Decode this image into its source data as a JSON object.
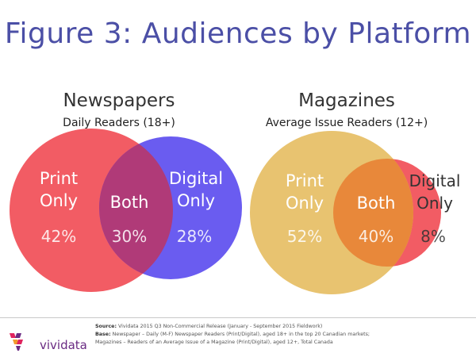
{
  "title": "Figure 3: Audiences by Platform",
  "chart_data": [
    {
      "type": "venn",
      "title": "Newspapers",
      "subtitle": "Daily Readers (18+)",
      "sets": [
        {
          "name": "Print",
          "region_label": [
            "Print",
            "Only"
          ],
          "value": 42,
          "value_label": "42%",
          "color": "#f25c64"
        },
        {
          "name": "Digital",
          "region_label": [
            "Digital",
            "Only"
          ],
          "value": 28,
          "value_label": "28%",
          "color": "#6a5cf0"
        }
      ],
      "overlap": {
        "label": "Both",
        "value": 30,
        "value_label": "30%",
        "color": "#b03a78"
      }
    },
    {
      "type": "venn",
      "title": "Magazines",
      "subtitle": "Average Issue Readers (12+)",
      "sets": [
        {
          "name": "Print",
          "region_label": [
            "Print",
            "Only"
          ],
          "value": 52,
          "value_label": "52%",
          "color": "#e8c370"
        },
        {
          "name": "Digital",
          "region_label": [
            "Digital",
            "Only"
          ],
          "value": 8,
          "value_label": "8%",
          "color": "#f25c64"
        }
      ],
      "overlap": {
        "label": "Both",
        "value": 40,
        "value_label": "40%",
        "color": "#e8883a"
      }
    }
  ],
  "footer": {
    "source_label": "Source:",
    "source_text": "Vividata 2015 Q3 Non-Commercial Release (January - September 2015 Fieldwork)",
    "base_label": "Base:",
    "base_text": "Newspaper – Daily (M-F) Newspaper Readers (Print/Digital), aged 18+ in the top 20 Canadian markets;",
    "base_text2": "Magazines – Readers of an Average Issue of a Magazine (Print/Digital), aged 12+, Total Canada"
  },
  "logo": {
    "text": "vividata",
    "colors": [
      "#e0245e",
      "#6a2b83",
      "#f29a2e"
    ]
  }
}
